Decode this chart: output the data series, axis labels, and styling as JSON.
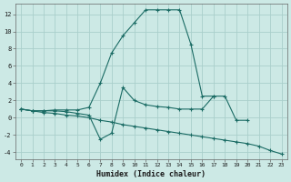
{
  "xlabel": "Humidex (Indice chaleur)",
  "bg_color": "#cce9e5",
  "grid_color": "#aacfcb",
  "line_color": "#1a6b64",
  "xlim": [
    -0.5,
    23.5
  ],
  "ylim": [
    -4.8,
    13.2
  ],
  "xticks": [
    0,
    1,
    2,
    3,
    4,
    5,
    6,
    7,
    8,
    9,
    10,
    11,
    12,
    13,
    14,
    15,
    16,
    17,
    18,
    19,
    20,
    21,
    22,
    23
  ],
  "yticks": [
    -4,
    -2,
    0,
    2,
    4,
    6,
    8,
    10,
    12
  ],
  "line1_x": [
    0,
    1,
    2,
    3,
    4,
    5,
    6,
    7,
    8,
    9,
    10,
    11,
    12,
    13,
    14,
    15,
    16,
    17
  ],
  "line1_y": [
    1.0,
    0.8,
    0.8,
    0.9,
    0.9,
    0.9,
    1.2,
    4.0,
    7.5,
    9.5,
    11.0,
    12.5,
    12.5,
    12.5,
    12.5,
    8.5,
    2.5,
    2.5
  ],
  "line2_x": [
    0,
    1,
    2,
    3,
    4,
    5,
    6,
    7,
    8,
    9,
    10,
    11,
    12,
    13,
    14,
    15,
    16,
    17,
    18,
    19,
    20
  ],
  "line2_y": [
    1.0,
    0.8,
    0.8,
    0.8,
    0.7,
    0.5,
    0.3,
    -2.5,
    -1.8,
    3.5,
    2.0,
    1.5,
    1.3,
    1.2,
    1.0,
    1.0,
    1.0,
    2.5,
    2.5,
    -0.3,
    -0.3
  ],
  "line3_x": [
    0,
    1,
    2,
    3,
    4,
    5,
    6,
    7,
    8,
    9,
    10,
    11,
    12,
    13,
    14,
    15,
    16,
    17,
    18,
    19,
    20,
    21,
    22,
    23
  ],
  "line3_y": [
    1.0,
    0.8,
    0.6,
    0.5,
    0.3,
    0.2,
    0.0,
    -0.3,
    -0.5,
    -0.8,
    -1.0,
    -1.2,
    -1.4,
    -1.6,
    -1.8,
    -2.0,
    -2.2,
    -2.4,
    -2.6,
    -2.8,
    -3.0,
    -3.3,
    -3.8,
    -4.2
  ]
}
